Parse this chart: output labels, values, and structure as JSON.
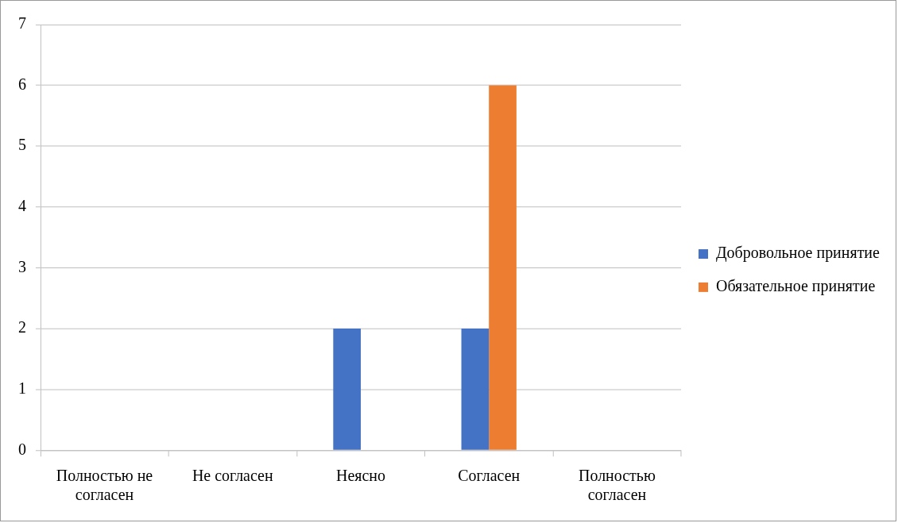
{
  "chart_data": {
    "type": "bar",
    "categories": [
      "Полностью не согласен",
      "Не согласен",
      "Неясно",
      "Согласен",
      "Полностью согласен"
    ],
    "series": [
      {
        "name": "Добровольное принятие",
        "color": "#4472c4",
        "values": [
          0,
          0,
          2,
          2,
          0
        ]
      },
      {
        "name": "Обязательное принятие",
        "color": "#ed7d31",
        "values": [
          0,
          0,
          0,
          6,
          0
        ]
      }
    ],
    "ylim": [
      0,
      7
    ],
    "yticks": [
      0,
      1,
      2,
      3,
      4,
      5,
      6,
      7
    ],
    "grid": "y",
    "legend": "right"
  }
}
